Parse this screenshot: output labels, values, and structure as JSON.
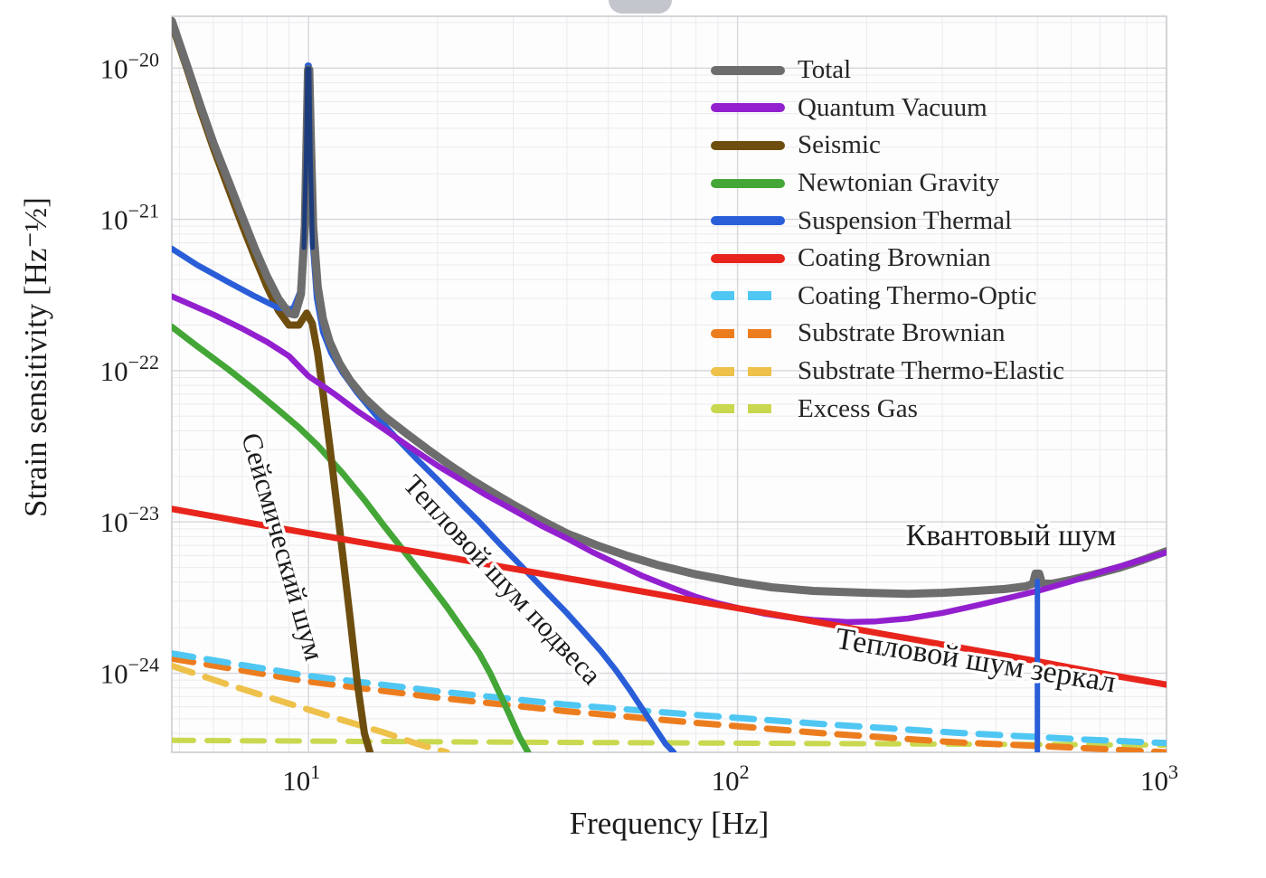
{
  "figure": {
    "xlabel": "Frequency [Hz]",
    "ylabel": "Strain sensitivity [Hz⁻½]"
  },
  "chart_data": {
    "type": "line",
    "xscale": "log",
    "yscale": "log",
    "xlabel": "Frequency [Hz]",
    "ylabel": "Strain sensitivity [Hz⁻½]",
    "xlim": [
      4.8,
      1000
    ],
    "ylim": [
      3e-25,
      2.2e-20
    ],
    "x_tick_exponents": [
      1,
      2,
      3
    ],
    "y_tick_exponents": [
      -20,
      -21,
      -22,
      -23,
      -24
    ],
    "grid": true,
    "legend_position": "upper right",
    "series": [
      {
        "id": "excess-gas",
        "label": "Excess Gas",
        "color": "#c9d84f",
        "width": 6,
        "dashed": true,
        "points": [
          [
            4.8,
            3.6e-25
          ],
          [
            30,
            3.5e-25
          ],
          [
            200,
            3.42e-25
          ],
          [
            1000,
            3.35e-25
          ]
        ]
      },
      {
        "id": "substrate-thermo-elastic",
        "label": "Substrate Thermo-Elastic",
        "color": "#edc14a",
        "width": 7,
        "dashed": true,
        "points": [
          [
            4.8,
            1.12e-24
          ],
          [
            6.5,
            8.4e-25
          ],
          [
            9,
            6.3e-25
          ],
          [
            12,
            4.9e-25
          ],
          [
            15,
            4.05e-25
          ],
          [
            18,
            3.4e-25
          ],
          [
            21,
            3e-25
          ]
        ]
      },
      {
        "id": "substrate-brownian",
        "label": "Substrate Brownian",
        "color": "#ec7d1f",
        "width": 7,
        "dashed": true,
        "points": [
          [
            4.8,
            1.25e-24
          ],
          [
            10,
            8.8e-25
          ],
          [
            20,
            6.9e-25
          ],
          [
            40,
            5.6e-25
          ],
          [
            80,
            4.7e-25
          ],
          [
            160,
            4e-25
          ],
          [
            320,
            3.5e-25
          ],
          [
            640,
            3.2e-25
          ],
          [
            1000,
            3e-25
          ]
        ]
      },
      {
        "id": "coating-thermo-optic",
        "label": "Coating Thermo-Optic",
        "color": "#4fc7f2",
        "width": 7,
        "dashed": true,
        "points": [
          [
            4.8,
            1.35e-24
          ],
          [
            10,
            9.6e-25
          ],
          [
            20,
            7.6e-25
          ],
          [
            40,
            6.2e-25
          ],
          [
            80,
            5.3e-25
          ],
          [
            160,
            4.6e-25
          ],
          [
            320,
            4.05e-25
          ],
          [
            640,
            3.65e-25
          ],
          [
            1000,
            3.45e-25
          ]
        ]
      },
      {
        "id": "newtonian-gravity",
        "label": "Newtonian Gravity",
        "color": "#43a636",
        "width": 7,
        "dashed": false,
        "points": [
          [
            4.8,
            1.95e-22
          ],
          [
            5.5,
            1.45e-22
          ],
          [
            6.5,
            1.02e-22
          ],
          [
            7.5,
            7.4e-23
          ],
          [
            8.5,
            5.5e-23
          ],
          [
            9.5,
            4.2e-23
          ],
          [
            10.5,
            3.2e-23
          ],
          [
            12,
            2.1e-23
          ],
          [
            13.5,
            1.4e-23
          ],
          [
            15,
            9.4e-24
          ],
          [
            17,
            6e-24
          ],
          [
            19,
            4e-24
          ],
          [
            21,
            2.75e-24
          ],
          [
            23,
            1.9e-24
          ],
          [
            25,
            1.35e-24
          ],
          [
            26.5,
            1e-24
          ],
          [
            28,
            7.2e-25
          ],
          [
            29.5,
            5.2e-25
          ],
          [
            31,
            3.8e-25
          ],
          [
            32.5,
            3e-25
          ]
        ]
      },
      {
        "id": "seismic",
        "label": "Seismic",
        "color": "#6e4e0f",
        "width": 8,
        "dashed": false,
        "points": [
          [
            4.8,
            1.95e-20
          ],
          [
            5.2,
            1e-20
          ],
          [
            5.6,
            5.2e-21
          ],
          [
            6,
            2.95e-21
          ],
          [
            6.5,
            1.6e-21
          ],
          [
            7,
            9.2e-22
          ],
          [
            7.5,
            5.6e-22
          ],
          [
            8,
            3.6e-22
          ],
          [
            8.5,
            2.5e-22
          ],
          [
            9,
            2e-22
          ],
          [
            9.5,
            2e-22
          ],
          [
            9.9,
            2.4e-22
          ],
          [
            10.2,
            2.05e-22
          ],
          [
            10.5,
            1.3e-22
          ],
          [
            10.8,
            7.2e-23
          ],
          [
            11.2,
            3.2e-23
          ],
          [
            11.6,
            1.4e-23
          ],
          [
            12,
            6.2e-24
          ],
          [
            12.5,
            2.3e-24
          ],
          [
            13,
            8.5e-25
          ],
          [
            13.5,
            4e-25
          ],
          [
            13.9,
            3e-25
          ]
        ]
      },
      {
        "id": "suspension-thermal",
        "label": "Suspension Thermal",
        "color": "#2a5ed8",
        "width": 6.5,
        "dashed": false,
        "points": [
          [
            4.8,
            6.4e-22
          ],
          [
            5.5,
            5e-22
          ],
          [
            6.5,
            3.85e-22
          ],
          [
            7.5,
            3.1e-22
          ],
          [
            8.5,
            2.6e-22
          ],
          [
            9.2,
            2.55e-22
          ],
          [
            9.55,
            3.3e-22
          ],
          [
            9.75,
            7e-22
          ],
          [
            9.87,
            2.6e-21
          ],
          [
            9.95,
            1.04e-20
          ],
          [
            10.02,
            1.04e-20
          ],
          [
            10.1,
            2.6e-21
          ],
          [
            10.22,
            7e-22
          ],
          [
            10.45,
            3e-22
          ],
          [
            10.8,
            1.8e-22
          ],
          [
            11.3,
            1.3e-22
          ],
          [
            12,
            9.7e-23
          ],
          [
            13,
            7.1e-23
          ],
          [
            14.5,
            4.9e-23
          ],
          [
            16,
            3.6e-23
          ],
          [
            18,
            2.55e-23
          ],
          [
            20,
            1.9e-23
          ],
          [
            22.5,
            1.35e-23
          ],
          [
            25,
            1e-23
          ],
          [
            28,
            7.1e-24
          ],
          [
            32,
            4.8e-24
          ],
          [
            36,
            3.4e-24
          ],
          [
            40,
            2.5e-24
          ],
          [
            44,
            1.85e-24
          ],
          [
            48,
            1.4e-24
          ],
          [
            52,
            1.05e-24
          ],
          [
            56,
            7.8e-25
          ],
          [
            60,
            5.8e-25
          ],
          [
            64,
            4.4e-25
          ],
          [
            68,
            3.4e-25
          ],
          [
            71,
            3e-25
          ]
        ]
      },
      {
        "id": "total",
        "label": "Total",
        "color": "#6d6d6d",
        "width": 9,
        "dashed": false,
        "points": [
          [
            4.8,
            2.05e-20
          ],
          [
            5.2,
            1.05e-20
          ],
          [
            5.6,
            5.6e-21
          ],
          [
            6,
            3.2e-21
          ],
          [
            6.5,
            1.8e-21
          ],
          [
            7,
            1.05e-21
          ],
          [
            7.5,
            6.4e-22
          ],
          [
            8,
            4.2e-22
          ],
          [
            8.5,
            3e-22
          ],
          [
            9,
            2.4e-22
          ],
          [
            9.3,
            2.35e-22
          ],
          [
            9.6,
            3.2e-22
          ],
          [
            9.8,
            9e-22
          ],
          [
            9.9,
            3.5e-21
          ],
          [
            9.97,
            9.8e-21
          ],
          [
            10.04,
            9.8e-21
          ],
          [
            10.12,
            3.5e-21
          ],
          [
            10.25,
            9e-22
          ],
          [
            10.5,
            3.6e-22
          ],
          [
            10.8,
            2.2e-22
          ],
          [
            11.2,
            1.55e-22
          ],
          [
            11.8,
            1.12e-22
          ],
          [
            12.5,
            8.6e-23
          ],
          [
            13.5,
            6.6e-23
          ],
          [
            15,
            5e-23
          ],
          [
            17,
            3.8e-23
          ],
          [
            19,
            3e-23
          ],
          [
            21,
            2.45e-23
          ],
          [
            24,
            1.9e-23
          ],
          [
            27,
            1.55e-23
          ],
          [
            30,
            1.3e-23
          ],
          [
            35,
            1.02e-23
          ],
          [
            40,
            8.4e-24
          ],
          [
            47,
            7e-24
          ],
          [
            55,
            6e-24
          ],
          [
            65,
            5.2e-24
          ],
          [
            80,
            4.5e-24
          ],
          [
            100,
            4e-24
          ],
          [
            120,
            3.7e-24
          ],
          [
            150,
            3.5e-24
          ],
          [
            200,
            3.4e-24
          ],
          [
            250,
            3.35e-24
          ],
          [
            300,
            3.4e-24
          ],
          [
            360,
            3.5e-24
          ],
          [
            420,
            3.6e-24
          ],
          [
            470,
            3.75e-24
          ],
          [
            488,
            3.9e-24
          ],
          [
            495,
            4.55e-24
          ],
          [
            505,
            4.55e-24
          ],
          [
            512,
            3.95e-24
          ],
          [
            540,
            3.9e-24
          ],
          [
            600,
            4.15e-24
          ],
          [
            680,
            4.5e-24
          ],
          [
            780,
            5e-24
          ],
          [
            880,
            5.6e-24
          ],
          [
            1000,
            6.4e-24
          ]
        ]
      },
      {
        "id": "quantum-vacuum",
        "label": "Quantum Vacuum",
        "color": "#9320cf",
        "width": 6.5,
        "dashed": false,
        "points": [
          [
            4.8,
            3.1e-22
          ],
          [
            6,
            2.35e-22
          ],
          [
            7,
            1.9e-22
          ],
          [
            8,
            1.55e-22
          ],
          [
            9,
            1.25e-22
          ],
          [
            10,
            9.2e-23
          ],
          [
            11.5,
            7e-23
          ],
          [
            13,
            5.4e-23
          ],
          [
            15,
            4.1e-23
          ],
          [
            17,
            3.2e-23
          ],
          [
            20,
            2.35e-23
          ],
          [
            23,
            1.85e-23
          ],
          [
            26,
            1.5e-23
          ],
          [
            30,
            1.2e-23
          ],
          [
            35,
            9.4e-24
          ],
          [
            40,
            7.8e-24
          ],
          [
            46,
            6.3e-24
          ],
          [
            53,
            5.2e-24
          ],
          [
            60,
            4.4e-24
          ],
          [
            70,
            3.7e-24
          ],
          [
            80,
            3.2e-24
          ],
          [
            90,
            2.9e-24
          ],
          [
            100,
            2.7e-24
          ],
          [
            115,
            2.48e-24
          ],
          [
            130,
            2.35e-24
          ],
          [
            150,
            2.25e-24
          ],
          [
            180,
            2.18e-24
          ],
          [
            210,
            2.2e-24
          ],
          [
            250,
            2.3e-24
          ],
          [
            300,
            2.5e-24
          ],
          [
            360,
            2.8e-24
          ],
          [
            430,
            3.15e-24
          ],
          [
            510,
            3.55e-24
          ],
          [
            600,
            4.05e-24
          ],
          [
            700,
            4.65e-24
          ],
          [
            800,
            5.2e-24
          ],
          [
            900,
            5.75e-24
          ],
          [
            1000,
            6.3e-24
          ]
        ]
      },
      {
        "id": "coating-brownian",
        "label": "Coating Brownian",
        "color": "#e8251c",
        "width": 7,
        "dashed": false,
        "points": [
          [
            4.8,
            1.22e-23
          ],
          [
            8,
            9.4e-24
          ],
          [
            13,
            7.4e-24
          ],
          [
            20,
            6e-24
          ],
          [
            32,
            4.75e-24
          ],
          [
            50,
            3.8e-24
          ],
          [
            80,
            3e-24
          ],
          [
            130,
            2.37e-24
          ],
          [
            200,
            1.9e-24
          ],
          [
            320,
            1.5e-24
          ],
          [
            500,
            1.2e-24
          ],
          [
            700,
            1e-24
          ],
          [
            1000,
            8.4e-25
          ]
        ]
      }
    ],
    "overlays": [
      {
        "name": "suspension-resonance-spike-10hz",
        "color": "#1d3c7c",
        "width": 5,
        "points": [
          [
            9.75,
            6.5e-22
          ],
          [
            9.87,
            2.5e-21
          ],
          [
            9.94,
            9.9e-21
          ],
          [
            10.03,
            9.9e-21
          ],
          [
            10.1,
            2.5e-21
          ],
          [
            10.22,
            6.5e-22
          ]
        ]
      },
      {
        "name": "violin-mode-500hz",
        "color": "#2a5ed8",
        "width": 6,
        "points": [
          [
            500,
            3e-25
          ],
          [
            500,
            4.05e-24
          ]
        ]
      }
    ],
    "annotations": [
      {
        "text": "Сейсмический шум",
        "color": "#7c5a17",
        "f": 8.3,
        "v": 6.6e-24,
        "rotate": 74,
        "size": 31
      },
      {
        "text": "Тепловой шум подвеса",
        "color": "#4a74c9",
        "f": 27.3,
        "v": 3.77e-24,
        "rotate": 47,
        "size": 31
      },
      {
        "text": "Квантовый шум",
        "color": "#97207f",
        "f": 434,
        "v": 7e-24,
        "rotate": 0,
        "size": 34
      },
      {
        "text": "Тепловой шум зеркал",
        "color": "#e12b1e",
        "f": 356,
        "v": 1.05e-24,
        "rotate": 9,
        "size": 34
      }
    ],
    "legend": [
      {
        "series": "total",
        "label": "Total"
      },
      {
        "series": "quantum-vacuum",
        "label": "Quantum Vacuum"
      },
      {
        "series": "seismic",
        "label": "Seismic"
      },
      {
        "series": "newtonian-gravity",
        "label": "Newtonian Gravity"
      },
      {
        "series": "suspension-thermal",
        "label": "Suspension Thermal"
      },
      {
        "series": "coating-brownian",
        "label": "Coating Brownian"
      },
      {
        "series": "coating-thermo-optic",
        "label": "Coating Thermo-Optic"
      },
      {
        "series": "substrate-brownian",
        "label": "Substrate Brownian"
      },
      {
        "series": "substrate-thermo-elastic",
        "label": "Substrate Thermo-Elastic"
      },
      {
        "series": "excess-gas",
        "label": "Excess Gas"
      }
    ]
  }
}
